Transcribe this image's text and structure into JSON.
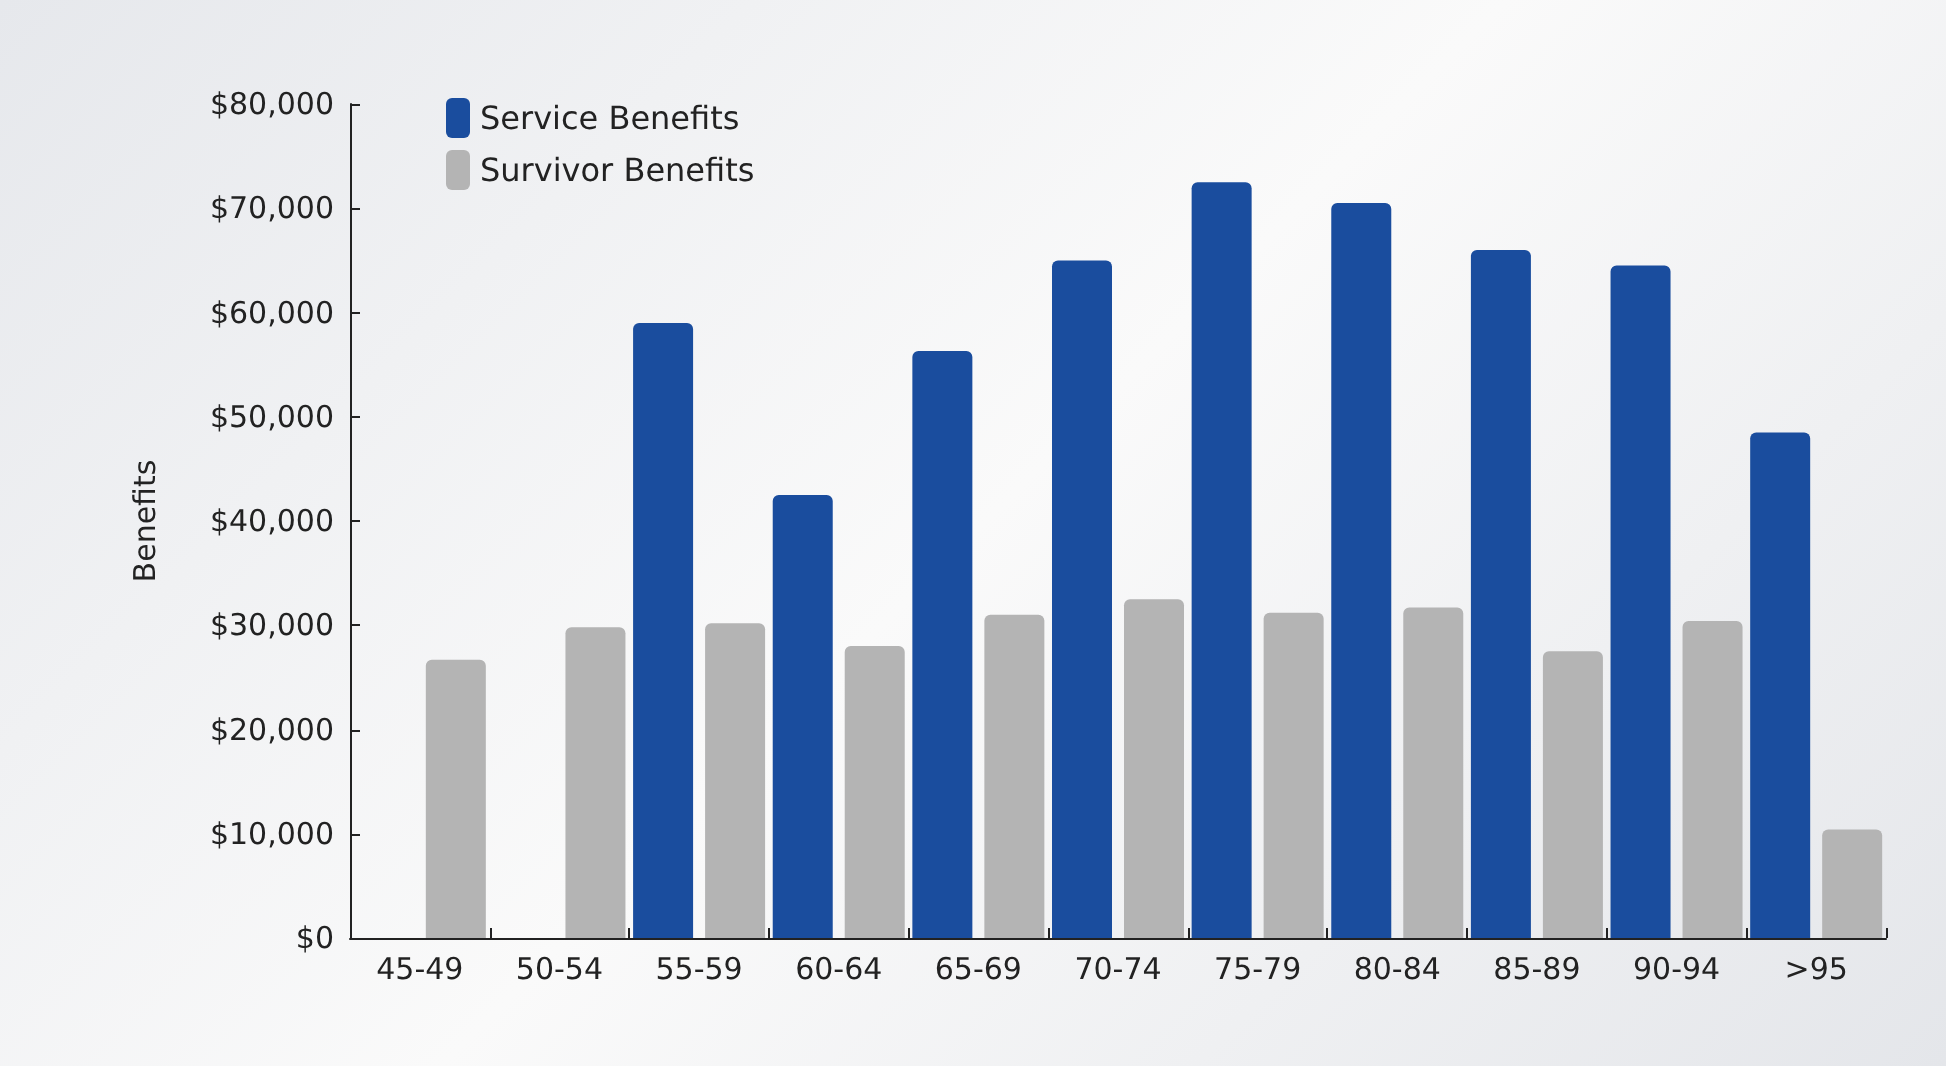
{
  "chart_data": {
    "type": "bar",
    "ylabel": "Benefits",
    "categories": [
      "45-49",
      "50-54",
      "55-59",
      "60-64",
      "65-69",
      "70-74",
      "75-79",
      "80-84",
      "85-89",
      "90-94",
      ">95"
    ],
    "series": [
      {
        "name": "Service Benefits",
        "color": "#1a4d9e",
        "values": [
          null,
          null,
          59000,
          42500,
          56300,
          65000,
          72500,
          70500,
          66000,
          64500,
          48500
        ]
      },
      {
        "name": "Survivor Benefits",
        "color": "#b4b4b4",
        "values": [
          26700,
          29800,
          30200,
          28000,
          31000,
          32500,
          31200,
          31700,
          27500,
          30400,
          10400
        ]
      }
    ],
    "ylim": [
      0,
      80000
    ],
    "yticks": [
      {
        "value": 0,
        "label": "$0"
      },
      {
        "value": 10000,
        "label": "$10,000"
      },
      {
        "value": 20000,
        "label": "$20,000"
      },
      {
        "value": 30000,
        "label": "$30,000"
      },
      {
        "value": 40000,
        "label": "$40,000"
      },
      {
        "value": 50000,
        "label": "$50,000"
      },
      {
        "value": 60000,
        "label": "$60,000"
      },
      {
        "value": 70000,
        "label": "$70,000"
      },
      {
        "value": 80000,
        "label": "$80,000"
      }
    ],
    "grid": false,
    "legend": "top left"
  }
}
